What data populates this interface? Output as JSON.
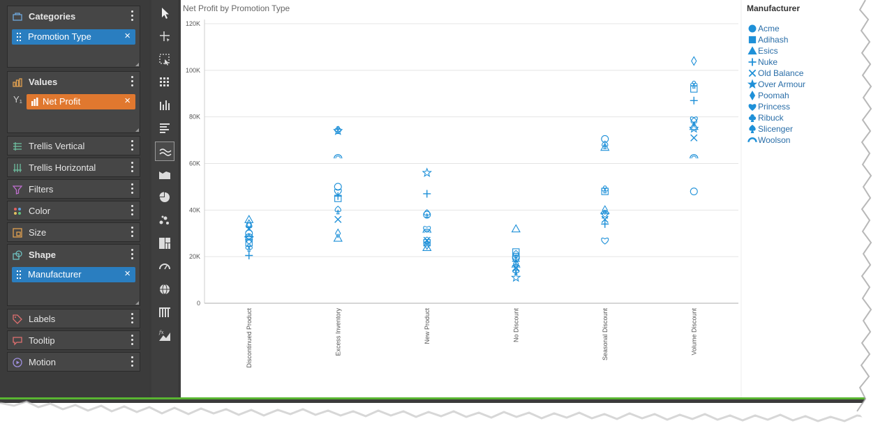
{
  "wells": {
    "categories": {
      "title": "Categories",
      "pill": "Promotion Type",
      "remove": "×"
    },
    "values": {
      "title": "Values",
      "axis_tag": "Y₁",
      "pill": "Net Profit",
      "remove": "×"
    },
    "trellis_vertical": {
      "title": "Trellis Vertical"
    },
    "trellis_horizontal": {
      "title": "Trellis Horizontal"
    },
    "filters": {
      "title": "Filters"
    },
    "color": {
      "title": "Color"
    },
    "size": {
      "title": "Size"
    },
    "shape": {
      "title": "Shape",
      "pill": "Manufacturer",
      "remove": "×"
    },
    "labels": {
      "title": "Labels"
    },
    "tooltip": {
      "title": "Tooltip"
    },
    "motion": {
      "title": "Motion"
    }
  },
  "toolbar": {
    "tools": [
      "pointer-icon",
      "crosshair-icon",
      "select-region-icon",
      "grid-icon",
      "column-chart-icon",
      "bar-chart-icon",
      "line-chart-icon",
      "area-chart-icon",
      "pie-chart-icon",
      "scatter-chart-icon",
      "treemap-icon",
      "gauge-icon",
      "globe-icon",
      "pivot-table-icon",
      "formula-chart-icon"
    ],
    "selected": "line-chart-icon"
  },
  "colors": {
    "accent": "#2a7ec0",
    "values_pill": "#e0782f",
    "marker": "#1e90d8",
    "status_bar": "#59b531"
  },
  "chart_data": {
    "type": "scatter",
    "title": "Net Profit by Promotion Type",
    "categories": [
      "Discontinued Product",
      "Excess Inventory",
      "New Product",
      "No Discount",
      "Seasonal Discount",
      "Volume Discount"
    ],
    "ylim": [
      0,
      120000
    ],
    "y_ticks": [
      "0",
      "20K",
      "40K",
      "60K",
      "80K",
      "100K",
      "120K"
    ],
    "grid": true,
    "legend_title": "Manufacturer",
    "legend_position": "right",
    "series": [
      {
        "name": "Acme",
        "shape": "circle",
        "values": [
          30000,
          50000,
          38000,
          20000,
          70500,
          48000
        ]
      },
      {
        "name": "Adihash",
        "shape": "square",
        "values": [
          26000,
          45000,
          26000,
          22000,
          48000,
          92000
        ]
      },
      {
        "name": "Esics",
        "shape": "triangle",
        "values": [
          36000,
          28000,
          24000,
          32000,
          67000,
          76000
        ]
      },
      {
        "name": "Nuke",
        "shape": "plus",
        "values": [
          20500,
          46000,
          47000,
          18000,
          34000,
          87000
        ]
      },
      {
        "name": "Old Balance",
        "shape": "x",
        "values": [
          32000,
          36000,
          27000,
          15000,
          36000,
          71000
        ]
      },
      {
        "name": "Over Armour",
        "shape": "star",
        "values": [
          28000,
          74000,
          56000,
          11000,
          38000,
          75000
        ]
      },
      {
        "name": "Poomah",
        "shape": "diamond",
        "values": [
          34000,
          30000,
          25000,
          17000,
          40000,
          104000
        ]
      },
      {
        "name": "Princess",
        "shape": "heart",
        "values": [
          27000,
          48000,
          32000,
          19000,
          27000,
          79000
        ]
      },
      {
        "name": "Ribuck",
        "shape": "club",
        "values": [
          24000,
          74500,
          27000,
          14000,
          49000,
          94000
        ]
      },
      {
        "name": "Slicenger",
        "shape": "spade",
        "values": [
          33000,
          40000,
          38500,
          21000,
          68000,
          78000
        ]
      },
      {
        "name": "Woolson",
        "shape": "arch",
        "values": [
          29000,
          63000,
          31000,
          16000,
          39000,
          63000
        ]
      }
    ]
  }
}
